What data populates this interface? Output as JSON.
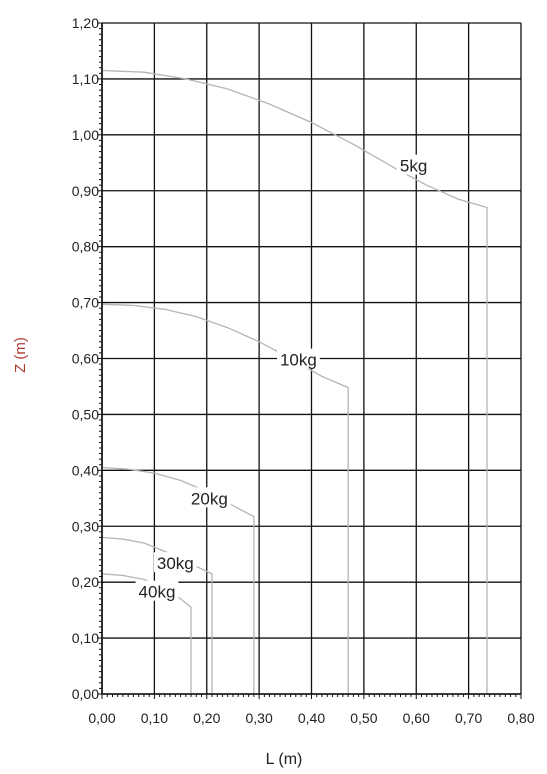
{
  "chart_data": {
    "type": "line",
    "title": "",
    "xlabel": "L (m)",
    "ylabel": "Z (m)",
    "xlim": [
      0,
      0.8
    ],
    "ylim": [
      0,
      1.2
    ],
    "x_ticks": [
      "0,00",
      "0,10",
      "0,20",
      "0,30",
      "0,40",
      "0,50",
      "0,60",
      "0,70",
      "0,80"
    ],
    "y_ticks": [
      "0,00",
      "0,10",
      "0,20",
      "0,30",
      "0,40",
      "0,50",
      "0,60",
      "0,70",
      "0,80",
      "0,90",
      "1,00",
      "1,10",
      "1,20"
    ],
    "grid": true,
    "legend": "none",
    "series": [
      {
        "name": "5kg",
        "label_at": [
          0.595,
          0.945
        ],
        "points": [
          [
            0.0,
            1.115
          ],
          [
            0.08,
            1.112
          ],
          [
            0.16,
            1.1
          ],
          [
            0.24,
            1.082
          ],
          [
            0.32,
            1.055
          ],
          [
            0.4,
            1.022
          ],
          [
            0.48,
            0.983
          ],
          [
            0.56,
            0.94
          ],
          [
            0.62,
            0.91
          ],
          [
            0.68,
            0.885
          ],
          [
            0.735,
            0.87
          ],
          [
            0.735,
            0.0
          ]
        ]
      },
      {
        "name": "10kg",
        "label_at": [
          0.375,
          0.598
        ],
        "points": [
          [
            0.0,
            0.697
          ],
          [
            0.06,
            0.695
          ],
          [
            0.12,
            0.688
          ],
          [
            0.18,
            0.675
          ],
          [
            0.24,
            0.655
          ],
          [
            0.3,
            0.63
          ],
          [
            0.36,
            0.6
          ],
          [
            0.42,
            0.568
          ],
          [
            0.47,
            0.548
          ],
          [
            0.47,
            0.0
          ]
        ]
      },
      {
        "name": "20kg",
        "label_at": [
          0.205,
          0.35
        ],
        "points": [
          [
            0.0,
            0.405
          ],
          [
            0.05,
            0.402
          ],
          [
            0.1,
            0.395
          ],
          [
            0.15,
            0.382
          ],
          [
            0.2,
            0.362
          ],
          [
            0.25,
            0.337
          ],
          [
            0.29,
            0.317
          ],
          [
            0.29,
            0.0
          ]
        ]
      },
      {
        "name": "30kg",
        "label_at": [
          0.14,
          0.234
        ],
        "points": [
          [
            0.0,
            0.28
          ],
          [
            0.04,
            0.277
          ],
          [
            0.08,
            0.27
          ],
          [
            0.12,
            0.255
          ],
          [
            0.16,
            0.237
          ],
          [
            0.21,
            0.215
          ],
          [
            0.21,
            0.0
          ]
        ]
      },
      {
        "name": "40kg",
        "label_at": [
          0.105,
          0.183
        ],
        "points": [
          [
            0.0,
            0.215
          ],
          [
            0.04,
            0.212
          ],
          [
            0.08,
            0.205
          ],
          [
            0.12,
            0.19
          ],
          [
            0.15,
            0.17
          ],
          [
            0.17,
            0.155
          ],
          [
            0.17,
            0.0
          ]
        ]
      }
    ]
  }
}
